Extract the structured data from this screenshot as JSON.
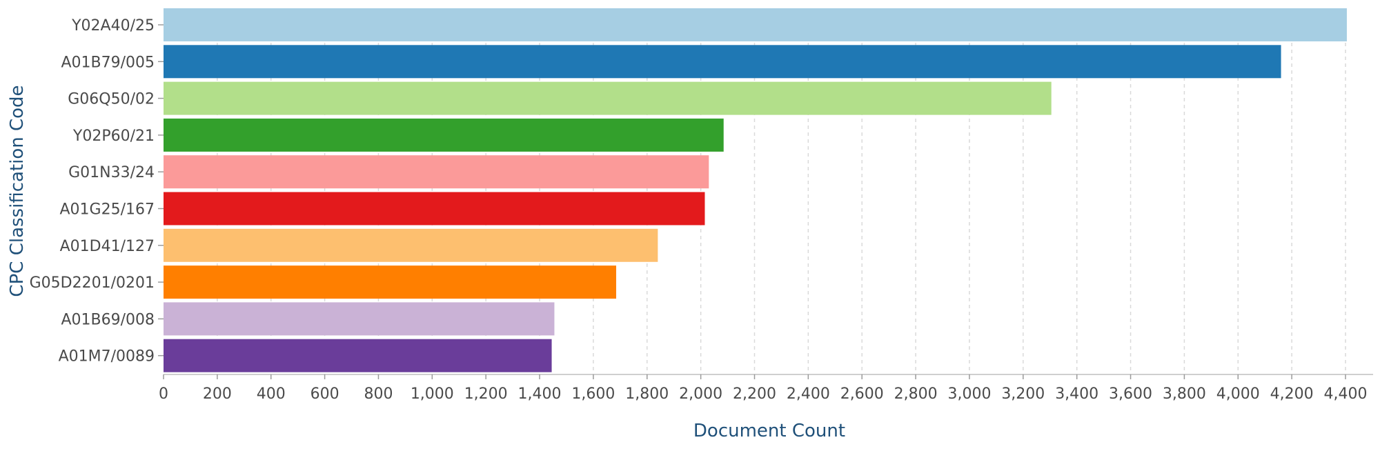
{
  "chart_data": {
    "type": "bar",
    "orientation": "horizontal",
    "categories": [
      "Y02A40/25",
      "A01B79/005",
      "G06Q50/02",
      "Y02P60/21",
      "G01N33/24",
      "A01G25/167",
      "A01D41/127",
      "G05D2201/0201",
      "A01B69/008",
      "A01M7/0089"
    ],
    "values": [
      4405,
      4160,
      3305,
      2085,
      2030,
      2015,
      1840,
      1685,
      1455,
      1445
    ],
    "colors": [
      "#a6cee3",
      "#1f78b4",
      "#b2df8a",
      "#33a02c",
      "#fb9a99",
      "#e31a1c",
      "#fdbf6f",
      "#ff7f00",
      "#cab2d6",
      "#6a3d9a"
    ],
    "xlabel": "Document Count",
    "ylabel": "CPC Classification Code",
    "xlim": [
      0,
      4400
    ],
    "x_ticks": [
      0,
      200,
      400,
      600,
      800,
      1000,
      1200,
      1400,
      1600,
      1800,
      2000,
      2200,
      2400,
      2600,
      2800,
      3000,
      3200,
      3400,
      3600,
      3800,
      4000,
      4200,
      4400
    ],
    "x_tick_labels": [
      "0",
      "200",
      "400",
      "600",
      "800",
      "1,000",
      "1,200",
      "1,400",
      "1,600",
      "1,800",
      "2,000",
      "2,200",
      "2,400",
      "2,600",
      "2,800",
      "3,000",
      "3,200",
      "3,400",
      "3,600",
      "3,800",
      "4,000",
      "4,200",
      "4,400"
    ],
    "grid": "vertical-dashed",
    "legend": "none"
  }
}
